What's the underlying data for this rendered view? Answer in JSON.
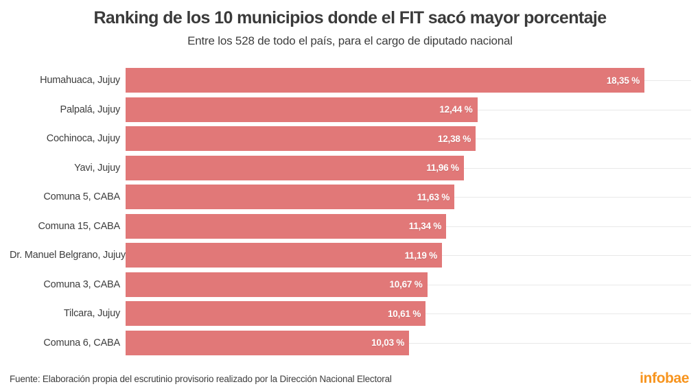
{
  "header": {
    "title": "Ranking de los 10 municipios donde el FIT sacó mayor porcentaje",
    "subtitle": "Entre los 528 de todo el país, para el cargo de diputado nacional"
  },
  "footer": {
    "source": "Fuente: Elaboración propia del escrutinio provisorio realizado por la Dirección Nacional Electoral",
    "logo_text": "infobae"
  },
  "colors": {
    "bar": "#e17878",
    "value_text": "#ffffff",
    "gridline": "#e8e8e8",
    "title_text": "#3a3a3a",
    "logo_orange": "#f7941e"
  },
  "chart_data": {
    "type": "bar",
    "orientation": "horizontal",
    "title": "Ranking de los 10 municipios donde el FIT sacó mayor porcentaje",
    "subtitle": "Entre los 528 de todo el país, para el cargo de diputado nacional",
    "categories": [
      "Humahuaca, Jujuy",
      "Palpalá, Jujuy",
      "Cochinoca, Jujuy",
      "Yavi, Jujuy",
      "Comuna 5, CABA",
      "Comuna 15, CABA",
      "Dr. Manuel Belgrano, Jujuy",
      "Comuna 3, CABA",
      "Tilcara, Jujuy",
      "Comuna 6, CABA"
    ],
    "values": [
      18.35,
      12.44,
      12.38,
      11.96,
      11.63,
      11.34,
      11.19,
      10.67,
      10.61,
      10.03
    ],
    "value_labels": [
      "18,35 %",
      "12,44 %",
      "12,38 %",
      "11,96 %",
      "11,63 %",
      "11,34 %",
      "11,19 %",
      "10,67 %",
      "10,61 %",
      "10,03 %"
    ],
    "xlabel": "",
    "ylabel": "",
    "xlim": [
      0,
      20
    ],
    "grid": "horizontal line per category row",
    "value_label_position": "inside-end",
    "legend": "none"
  }
}
